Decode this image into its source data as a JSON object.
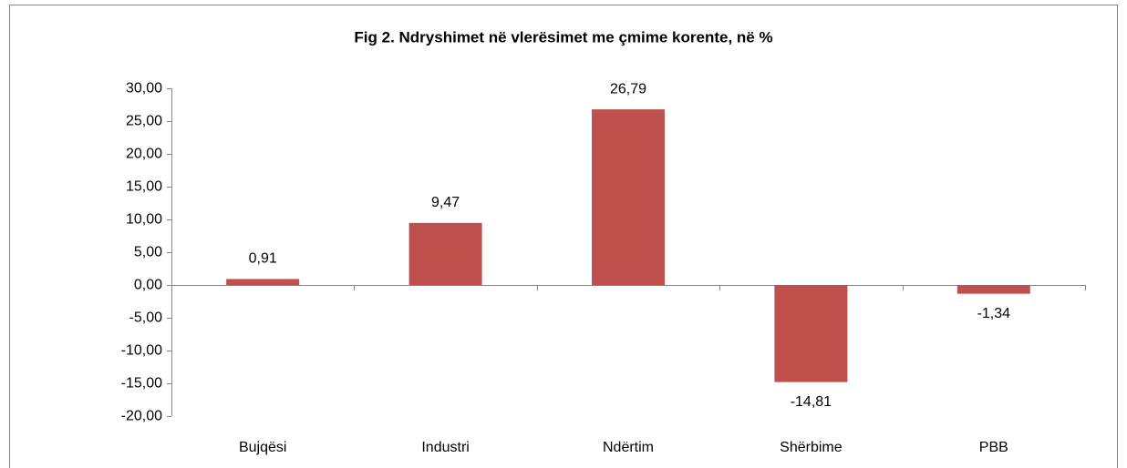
{
  "chart_data": {
    "type": "bar",
    "title": "Fig 2. Ndryshimet në vlerësimet me çmime korente, në %",
    "categories": [
      "Bujqësi",
      "Industri",
      "Ndërtim",
      "Shërbime",
      "PBB"
    ],
    "values": [
      0.91,
      9.47,
      26.79,
      -14.81,
      -1.34
    ],
    "value_labels": [
      "0,91",
      "9,47",
      "26,79",
      "-14,81",
      "-1,34"
    ],
    "color": "#c0504d",
    "ylim": [
      -20,
      30
    ],
    "yticks": [
      {
        "value": -20,
        "label": "-20,00"
      },
      {
        "value": -15,
        "label": "-15,00"
      },
      {
        "value": -10,
        "label": "-10,00"
      },
      {
        "value": -5,
        "label": "-5,00"
      },
      {
        "value": 0,
        "label": "0,00"
      },
      {
        "value": 5,
        "label": "5,00"
      },
      {
        "value": 10,
        "label": "10,00"
      },
      {
        "value": 15,
        "label": "15,00"
      },
      {
        "value": 20,
        "label": "20,00"
      },
      {
        "value": 25,
        "label": "25,00"
      },
      {
        "value": 30,
        "label": "30,00"
      }
    ],
    "grid": false
  }
}
